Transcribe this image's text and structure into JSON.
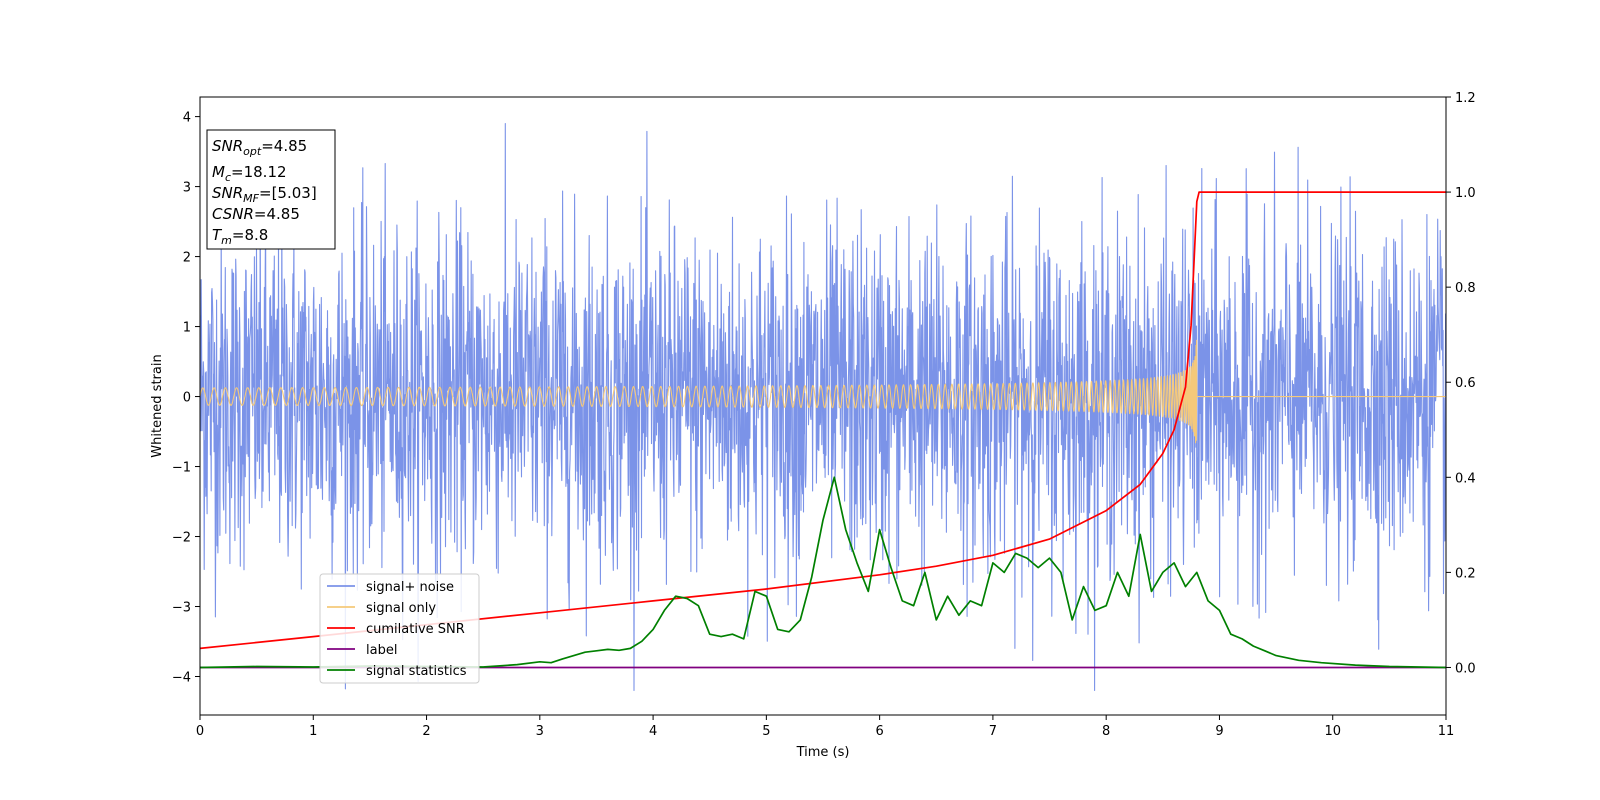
{
  "chart_data": {
    "type": "line",
    "xlabel": "Time (s)",
    "ylabel": "Whitened strain",
    "xlim": [
      0,
      11
    ],
    "ylim_left": [
      -4.55,
      4.28
    ],
    "ylim_right": [
      -0.1,
      1.2
    ],
    "x_ticks": [
      "0",
      "1",
      "2",
      "3",
      "4",
      "5",
      "6",
      "7",
      "8",
      "9",
      "10",
      "11"
    ],
    "y_left_ticks": [
      "4",
      "3",
      "2",
      "1",
      "0",
      "−1",
      "−2",
      "−3",
      "−4"
    ],
    "y_right_ticks": [
      "1.2",
      "1.0",
      "0.8",
      "0.6",
      "0.4",
      "0.2",
      "0.0"
    ],
    "grid": false,
    "legend_placement": "lower-left",
    "info_box": [
      {
        "var": "SNR",
        "sub": "opt",
        "value": "=4.85"
      },
      {
        "var": "M",
        "sub": "c",
        "value": "=18.12"
      },
      {
        "var": "SNR",
        "sub": "MF",
        "value": "=[5.03]"
      },
      {
        "var": "CSNR",
        "sub": "",
        "value": "=4.85"
      },
      {
        "var": "T",
        "sub": "m",
        "value": "=8.8"
      }
    ],
    "series": [
      {
        "name": "signal+ noise",
        "color": "#7b93e8",
        "axis": "left",
        "kind": "noise",
        "noise_std": 1.2,
        "x_range": [
          0,
          11
        ]
      },
      {
        "name": "signal only",
        "color": "#f5c97a",
        "axis": "left",
        "kind": "chirp",
        "merger_time": 8.8,
        "peak_amplitude": 0.85
      },
      {
        "name": "cumilative SNR",
        "color": "#ff0000",
        "axis": "right",
        "x": [
          0,
          1,
          2,
          3,
          4,
          5,
          6,
          6.5,
          7,
          7.5,
          8,
          8.3,
          8.5,
          8.6,
          8.7,
          8.75,
          8.8,
          8.82,
          11
        ],
        "y": [
          0.04,
          0.065,
          0.09,
          0.115,
          0.14,
          0.165,
          0.195,
          0.213,
          0.236,
          0.27,
          0.33,
          0.385,
          0.45,
          0.5,
          0.59,
          0.72,
          0.98,
          1.0,
          1.0
        ]
      },
      {
        "name": "label",
        "color": "#800080",
        "axis": "right",
        "x": [
          0,
          11
        ],
        "y": [
          0.0,
          0.0
        ]
      },
      {
        "name": "signal statistics",
        "color": "#008000",
        "axis": "right",
        "x": [
          0,
          0.5,
          1.0,
          1.5,
          2.0,
          2.5,
          2.8,
          3.0,
          3.1,
          3.2,
          3.3,
          3.4,
          3.5,
          3.6,
          3.7,
          3.8,
          3.9,
          4.0,
          4.1,
          4.2,
          4.3,
          4.4,
          4.5,
          4.6,
          4.7,
          4.8,
          4.9,
          5.0,
          5.1,
          5.2,
          5.3,
          5.4,
          5.5,
          5.6,
          5.7,
          5.8,
          5.9,
          6.0,
          6.1,
          6.2,
          6.3,
          6.4,
          6.5,
          6.6,
          6.7,
          6.8,
          6.9,
          7.0,
          7.1,
          7.2,
          7.3,
          7.4,
          7.5,
          7.6,
          7.7,
          7.8,
          7.9,
          8.0,
          8.1,
          8.2,
          8.3,
          8.4,
          8.5,
          8.6,
          8.7,
          8.8,
          8.9,
          9.0,
          9.1,
          9.2,
          9.3,
          9.4,
          9.5,
          9.7,
          9.9,
          10.2,
          10.5,
          11.0
        ],
        "y": [
          0.0,
          0.002,
          0.001,
          0.003,
          0.002,
          0.001,
          0.006,
          0.012,
          0.01,
          0.018,
          0.025,
          0.032,
          0.035,
          0.038,
          0.036,
          0.04,
          0.055,
          0.08,
          0.12,
          0.15,
          0.145,
          0.13,
          0.07,
          0.065,
          0.07,
          0.06,
          0.16,
          0.15,
          0.08,
          0.075,
          0.1,
          0.19,
          0.31,
          0.4,
          0.29,
          0.22,
          0.16,
          0.29,
          0.21,
          0.14,
          0.13,
          0.2,
          0.1,
          0.15,
          0.11,
          0.14,
          0.13,
          0.22,
          0.2,
          0.24,
          0.23,
          0.21,
          0.23,
          0.2,
          0.1,
          0.17,
          0.12,
          0.13,
          0.2,
          0.15,
          0.28,
          0.16,
          0.2,
          0.22,
          0.17,
          0.2,
          0.14,
          0.12,
          0.07,
          0.06,
          0.045,
          0.035,
          0.025,
          0.015,
          0.01,
          0.005,
          0.002,
          0.0
        ]
      }
    ]
  }
}
